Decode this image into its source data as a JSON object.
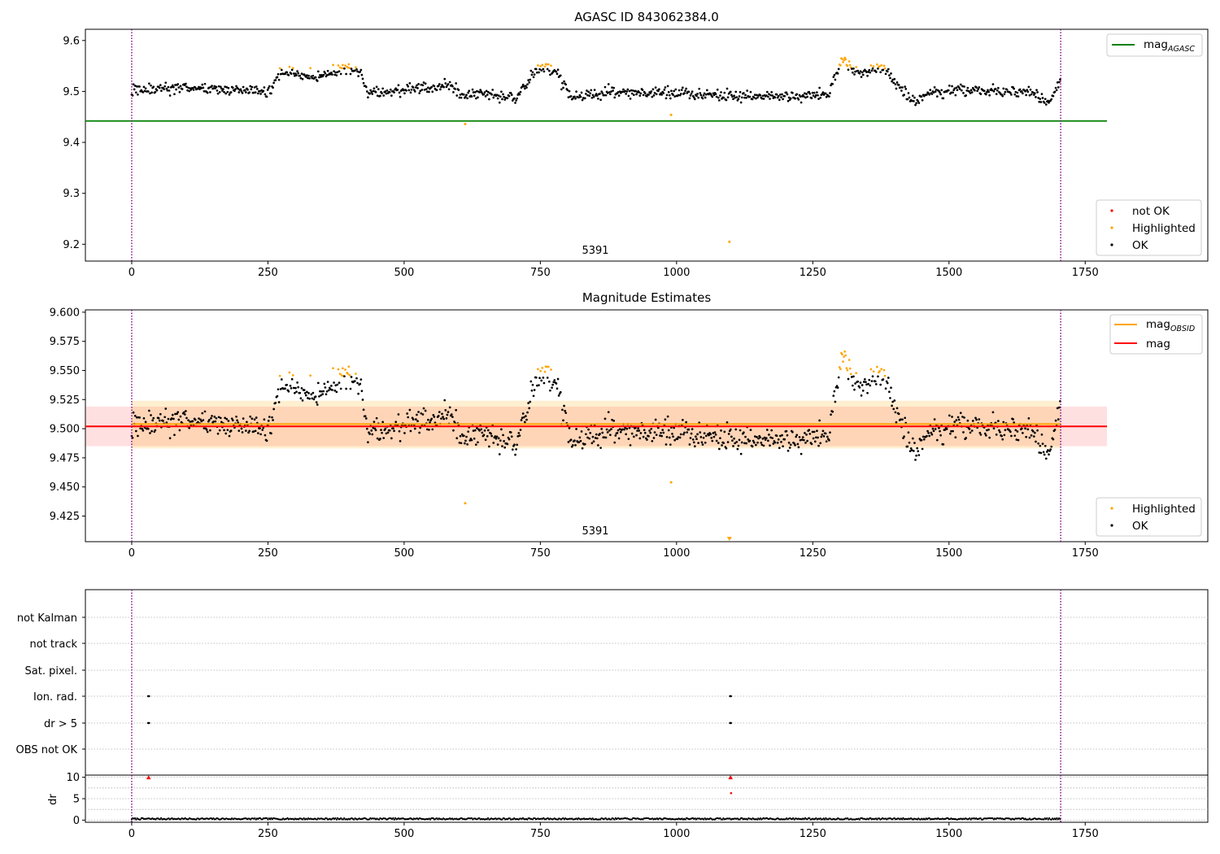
{
  "figure_title": "AGASC ID 843062384.0",
  "panel2_title": "Magnitude Estimates",
  "obsid_label": "5391",
  "legends": {
    "top_lines": [
      {
        "label": "mag",
        "sub": "AGASC",
        "color": "#008000"
      }
    ],
    "top_points": [
      {
        "label": "not OK",
        "color": "#ff0000"
      },
      {
        "label": "Highlighted",
        "color": "#ffa500"
      },
      {
        "label": "OK",
        "color": "#000000"
      }
    ],
    "mid_lines": [
      {
        "label": "mag",
        "sub": "OBSID",
        "color": "#ffa500"
      },
      {
        "label": "mag",
        "sub": "",
        "color": "#ff0000"
      }
    ],
    "mid_points": [
      {
        "label": "Highlighted",
        "color": "#ffa500"
      },
      {
        "label": "OK",
        "color": "#000000"
      }
    ]
  },
  "flag_labels": [
    "not Kalman",
    "not track",
    "Sat. pixel.",
    "Ion. rad.",
    "dr > 5",
    "OBS not OK"
  ],
  "dr_label": "dr",
  "chart_data": [
    {
      "type": "scatter",
      "title": "AGASC ID 843062384.0",
      "xlim": [
        -85,
        1975
      ],
      "ylim": [
        9.167,
        9.622
      ],
      "xticks": [
        0,
        250,
        500,
        750,
        1000,
        1250,
        1500,
        1750
      ],
      "yticks": [
        9.2,
        9.3,
        9.4,
        9.5,
        9.6
      ],
      "ytick_decimals": 1,
      "hlines": [
        {
          "name": "mag_AGASC",
          "y": 9.442,
          "x": [
            -85,
            1790
          ],
          "color": "#008000"
        }
      ],
      "vlines": [
        0,
        1705
      ],
      "series": [
        {
          "name": "OK",
          "color": "#000000"
        },
        {
          "name": "Highlighted",
          "color": "#ffa500"
        },
        {
          "name": "not OK",
          "color": "#ff0000"
        }
      ],
      "outliers": [
        {
          "x": 612,
          "y": 9.436,
          "color": "#ffa500"
        },
        {
          "x": 990,
          "y": 9.454,
          "color": "#ffa500"
        },
        {
          "x": 1097,
          "y": 9.205,
          "color": "#ffa500"
        }
      ],
      "legend": "upper right / lower right"
    },
    {
      "type": "scatter",
      "title": "Magnitude Estimates",
      "xlim": [
        -85,
        1975
      ],
      "ylim": [
        9.403,
        9.602
      ],
      "xticks": [
        0,
        250,
        500,
        750,
        1000,
        1250,
        1500,
        1750
      ],
      "yticks": [
        9.425,
        9.45,
        9.475,
        9.5,
        9.525,
        9.55,
        9.575,
        9.6
      ],
      "ytick_decimals": 3,
      "hlines": [
        {
          "name": "mag_OBSID",
          "y": 9.504,
          "x": [
            0,
            1705
          ],
          "color": "#ffa500"
        },
        {
          "name": "mag",
          "y": 9.502,
          "x": [
            -85,
            1790
          ],
          "color": "#ff0000"
        }
      ],
      "bands": [
        {
          "y": [
            9.485,
            9.519
          ],
          "x": [
            -85,
            1790
          ],
          "color": "#ff0000",
          "opacity": 0.12
        },
        {
          "y": [
            9.483,
            9.524
          ],
          "x": [
            0,
            1705
          ],
          "color": "#ffa500",
          "opacity": 0.18
        }
      ],
      "vlines": [
        0,
        1705
      ],
      "series": [
        {
          "name": "OK",
          "color": "#000000"
        },
        {
          "name": "Highlighted",
          "color": "#ffa500"
        }
      ],
      "outliers": [
        {
          "x": 612,
          "y": 9.436,
          "color": "#ffa500"
        },
        {
          "x": 990,
          "y": 9.454,
          "color": "#ffa500"
        }
      ],
      "offscale_markers": [
        {
          "x": 1097,
          "color": "#ffa500"
        }
      ],
      "legend": "lower right"
    },
    {
      "type": "scatter",
      "title": "",
      "xlim": [
        -85,
        1975
      ],
      "categories": [
        "not Kalman",
        "not track",
        "Sat. pixel.",
        "Ion. rad.",
        "dr > 5",
        "OBS not OK"
      ],
      "flag_points": [
        {
          "category": "Ion. rad.",
          "x": [
            30,
            31,
            32,
            1098,
            1099,
            1100
          ]
        },
        {
          "category": "dr > 5",
          "x": [
            30,
            31,
            32,
            1098,
            1099,
            1100
          ]
        }
      ],
      "vlines": [
        0,
        1705
      ]
    },
    {
      "type": "scatter",
      "title": "",
      "ylabel": "dr",
      "xlim": [
        -85,
        1975
      ],
      "ylim": [
        -0.5,
        10.5
      ],
      "xticks": [
        0,
        250,
        500,
        750,
        1000,
        1250,
        1500,
        1750
      ],
      "yticks": [
        0,
        5,
        10
      ],
      "baseline": 0.3,
      "spikes": [
        {
          "x": 31,
          "y": 10,
          "marker": "triangle",
          "color": "#ff0000"
        },
        {
          "x": 1099,
          "y": 10,
          "marker": "triangle",
          "color": "#ff0000"
        },
        {
          "x": 1100,
          "y": 6.3,
          "marker": "dot",
          "color": "#ff0000"
        }
      ],
      "vlines": [
        0,
        1705
      ]
    }
  ],
  "model": {
    "n": 1705,
    "baseline": 9.5,
    "noise": 0.008,
    "highlight_threshold": 9.545,
    "segments": [
      [
        0,
        9.502
      ],
      [
        100,
        9.507
      ],
      [
        255,
        9.499
      ],
      [
        270,
        9.535
      ],
      [
        290,
        9.538
      ],
      [
        340,
        9.527
      ],
      [
        370,
        9.54
      ],
      [
        405,
        9.545
      ],
      [
        422,
        9.532
      ],
      [
        432,
        9.496
      ],
      [
        500,
        9.503
      ],
      [
        560,
        9.508
      ],
      [
        585,
        9.512
      ],
      [
        600,
        9.497
      ],
      [
        700,
        9.489
      ],
      [
        715,
        9.5
      ],
      [
        735,
        9.53
      ],
      [
        750,
        9.548
      ],
      [
        780,
        9.54
      ],
      [
        790,
        9.515
      ],
      [
        810,
        9.485
      ],
      [
        850,
        9.497
      ],
      [
        1000,
        9.497
      ],
      [
        1100,
        9.492
      ],
      [
        1250,
        9.492
      ],
      [
        1280,
        9.493
      ],
      [
        1290,
        9.53
      ],
      [
        1305,
        9.56
      ],
      [
        1320,
        9.545
      ],
      [
        1340,
        9.533
      ],
      [
        1370,
        9.548
      ],
      [
        1385,
        9.54
      ],
      [
        1400,
        9.515
      ],
      [
        1420,
        9.495
      ],
      [
        1440,
        9.48
      ],
      [
        1460,
        9.495
      ],
      [
        1500,
        9.503
      ],
      [
        1600,
        9.5
      ],
      [
        1660,
        9.497
      ],
      [
        1675,
        9.478
      ],
      [
        1690,
        9.49
      ],
      [
        1705,
        9.52
      ]
    ]
  }
}
